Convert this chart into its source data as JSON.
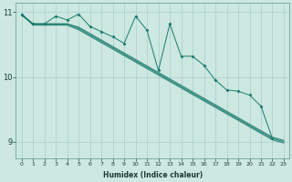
{
  "xlabel": "Humidex (Indice chaleur)",
  "background_color": "#cce8e0",
  "line_color": "#1a7a6e",
  "grid_color": "#aacccc",
  "xlim": [
    -0.5,
    23.5
  ],
  "ylim": [
    8.75,
    11.15
  ],
  "yticks": [
    9,
    10,
    11
  ],
  "xticks": [
    0,
    1,
    2,
    3,
    4,
    5,
    6,
    7,
    8,
    9,
    10,
    11,
    12,
    13,
    14,
    15,
    16,
    17,
    18,
    19,
    20,
    21,
    22,
    23
  ],
  "series1_x": [
    0,
    1,
    2,
    3,
    4,
    5,
    6,
    7,
    8,
    9,
    10,
    11,
    12,
    13,
    14,
    15,
    16,
    17,
    18,
    19,
    20,
    21,
    22
  ],
  "series1_y": [
    10.97,
    10.82,
    10.82,
    10.94,
    10.88,
    10.97,
    10.78,
    10.7,
    10.62,
    10.52,
    10.94,
    10.72,
    10.1,
    10.82,
    10.32,
    10.32,
    10.18,
    9.95,
    9.8,
    9.78,
    9.72,
    9.55,
    9.05
  ],
  "series2_x": [
    0,
    1,
    2,
    3,
    4,
    5,
    6,
    7,
    8,
    9,
    10,
    11,
    12,
    13,
    14,
    15,
    16,
    17,
    18,
    19,
    20,
    21,
    22,
    23
  ],
  "series2_y": [
    10.95,
    10.82,
    10.82,
    10.82,
    10.82,
    10.75,
    10.65,
    10.55,
    10.45,
    10.35,
    10.25,
    10.15,
    10.05,
    9.95,
    9.85,
    9.75,
    9.65,
    9.55,
    9.45,
    9.35,
    9.25,
    9.15,
    9.05,
    9.0
  ],
  "series3_x": [
    0,
    1,
    2,
    3,
    4,
    5,
    6,
    7,
    8,
    9,
    10,
    11,
    12,
    13,
    14,
    15,
    16,
    17,
    18,
    19,
    20,
    21,
    22,
    23
  ],
  "series3_y": [
    10.97,
    10.82,
    10.82,
    10.82,
    10.82,
    10.77,
    10.67,
    10.57,
    10.47,
    10.37,
    10.27,
    10.17,
    10.07,
    9.97,
    9.87,
    9.77,
    9.67,
    9.57,
    9.47,
    9.37,
    9.27,
    9.17,
    9.07,
    9.02
  ],
  "series4_x": [
    0,
    1,
    2,
    3,
    4,
    5,
    6,
    7,
    8,
    9,
    10,
    11,
    12,
    13,
    14,
    15,
    16,
    17,
    18,
    19,
    20,
    21,
    22,
    23
  ],
  "series4_y": [
    10.97,
    10.8,
    10.8,
    10.8,
    10.8,
    10.73,
    10.63,
    10.53,
    10.43,
    10.33,
    10.23,
    10.13,
    10.03,
    9.93,
    9.83,
    9.73,
    9.63,
    9.53,
    9.43,
    9.33,
    9.23,
    9.13,
    9.03,
    8.98
  ]
}
